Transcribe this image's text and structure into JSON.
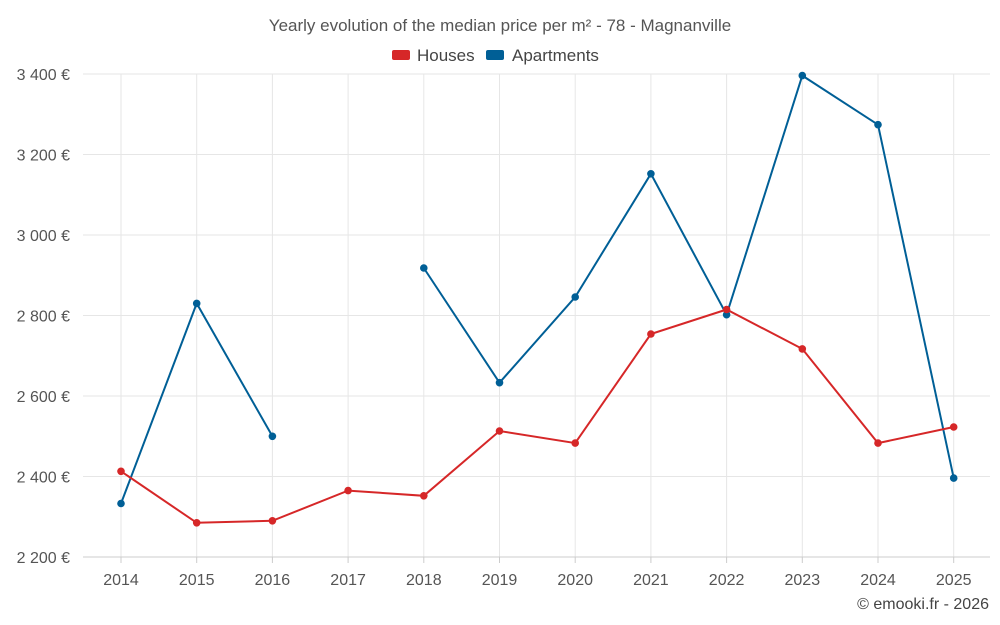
{
  "chart_data": {
    "type": "line",
    "title": "Yearly evolution of the median price per m² - 78 - Magnanville",
    "categories": [
      "2014",
      "2015",
      "2016",
      "2017",
      "2018",
      "2019",
      "2020",
      "2021",
      "2022",
      "2023",
      "2024",
      "2025"
    ],
    "series": [
      {
        "name": "Houses",
        "color": "#d62728",
        "values": [
          2413,
          2285,
          2290,
          2365,
          2352,
          2513,
          2483,
          2754,
          2815,
          2717,
          2483,
          2523
        ]
      },
      {
        "name": "Apartments",
        "color": "#005f96",
        "values": [
          2333,
          2830,
          2500,
          null,
          2918,
          2633,
          2846,
          3152,
          2802,
          3396,
          3274,
          2396
        ]
      }
    ],
    "y_ticks": [
      "2 200 €",
      "2 400 €",
      "2 600 €",
      "2 800 €",
      "3 000 €",
      "3 200 €",
      "3 400 €"
    ],
    "y_tick_values": [
      2200,
      2400,
      2600,
      2800,
      3000,
      3200,
      3400
    ],
    "ylim": [
      2200,
      3400
    ],
    "legend_position": "top-center",
    "xlabel": "",
    "ylabel": "",
    "grid": true,
    "credit": "© emooki.fr - 2026"
  }
}
